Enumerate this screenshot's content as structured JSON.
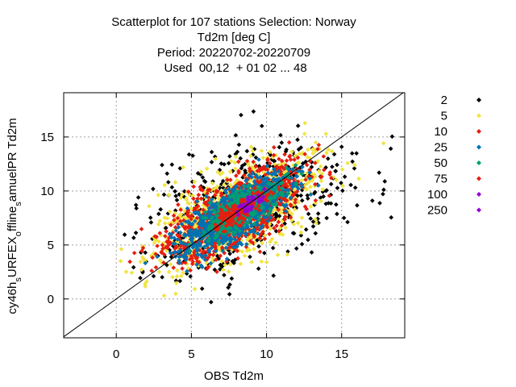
{
  "chart_data": {
    "type": "scatter",
    "title_lines": [
      "Scatterplot for  107 stations Selection: Norway",
      "Td2m [deg C]",
      "Period: 20220702-20220709",
      " Used  00,12  + 01 02 ... 48"
    ],
    "xlabel": "OBS Td2m",
    "ylabel_parts": [
      "cy46h",
      "s",
      "URFEX",
      "o",
      "ffline",
      "s",
      "amuelPR Td2m"
    ],
    "xlim": [
      -3.5,
      19.2
    ],
    "ylim": [
      -3.6,
      19.1
    ],
    "xticks": [
      0,
      5,
      10,
      15
    ],
    "yticks": [
      0,
      5,
      10,
      15
    ],
    "diagonal": "y = x",
    "legend": [
      {
        "label": "2",
        "color": "#000000"
      },
      {
        "label": "5",
        "color": "#f0e442"
      },
      {
        "label": "10",
        "color": "#e51e10"
      },
      {
        "label": "25",
        "color": "#0072b2"
      },
      {
        "label": "50",
        "color": "#009e73"
      },
      {
        "label": "75",
        "color": "#e51e10"
      },
      {
        "label": "100",
        "color": "#9400d3"
      },
      {
        "label": "250",
        "color": "#9400d3"
      }
    ],
    "density_bands": [
      {
        "min_count": 2,
        "color": "#000000",
        "center_x": 8.5,
        "sigma_along": 4.2,
        "sigma_across": 2.4,
        "n": 520
      },
      {
        "min_count": 5,
        "color": "#f0e442",
        "center_x": 8.3,
        "sigma_along": 3.5,
        "sigma_across": 1.7,
        "n": 900
      },
      {
        "min_count": 10,
        "color": "#e51e10",
        "center_x": 8.2,
        "sigma_along": 3.0,
        "sigma_across": 1.35,
        "n": 900
      },
      {
        "min_count": 25,
        "color": "#0072b2",
        "center_x": 8.0,
        "sigma_along": 2.4,
        "sigma_across": 0.95,
        "n": 900
      },
      {
        "min_count": 50,
        "color": "#009e73",
        "center_x": 8.3,
        "sigma_along": 1.7,
        "sigma_across": 0.6,
        "n": 500
      },
      {
        "min_count": 75,
        "color": "#e51e10",
        "center_x": 8.3,
        "sigma_along": 1.2,
        "sigma_across": 0.4,
        "n": 160
      },
      {
        "min_count": 100,
        "color": "#9400d3",
        "center_x": 8.8,
        "sigma_along": 0.6,
        "sigma_across": 0.25,
        "n": 35
      }
    ]
  }
}
